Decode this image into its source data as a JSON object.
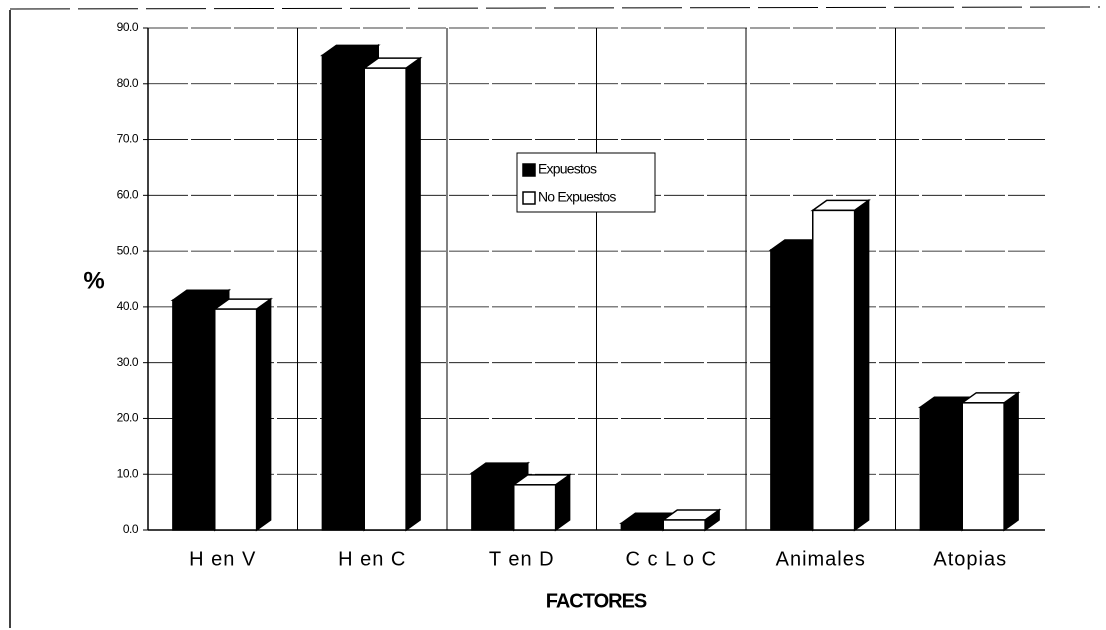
{
  "chart_data": {
    "type": "bar3d",
    "categories": [
      "H en V",
      "H en C",
      "T en D",
      "C c L o C",
      "Animales",
      "Atopias"
    ],
    "series": [
      {
        "name": "Expuestos",
        "color": "#000000",
        "values": [
          41.2,
          85.1,
          10.2,
          1.2,
          50.2,
          22.0
        ]
      },
      {
        "name": "No Expuestos",
        "color": "#ffffff",
        "values": [
          39.6,
          82.8,
          8.1,
          1.8,
          57.3,
          22.8
        ]
      }
    ],
    "ylabel": "%",
    "xlabel": "FACTORES",
    "ylim": [
      0,
      90
    ],
    "yticks": [
      {
        "value": 0,
        "label": "0.0"
      },
      {
        "value": 10,
        "label": "10.0"
      },
      {
        "value": 20,
        "label": "20.0"
      },
      {
        "value": 30,
        "label": "30.0"
      },
      {
        "value": 40,
        "label": "40.0"
      },
      {
        "value": 50,
        "label": "50.0"
      },
      {
        "value": 60,
        "label": "60.0"
      },
      {
        "value": 70,
        "label": "70.0"
      },
      {
        "value": 80,
        "label": "80.0"
      },
      {
        "value": 90,
        "label": "90.0"
      }
    ],
    "grid": true,
    "legend": "center"
  }
}
